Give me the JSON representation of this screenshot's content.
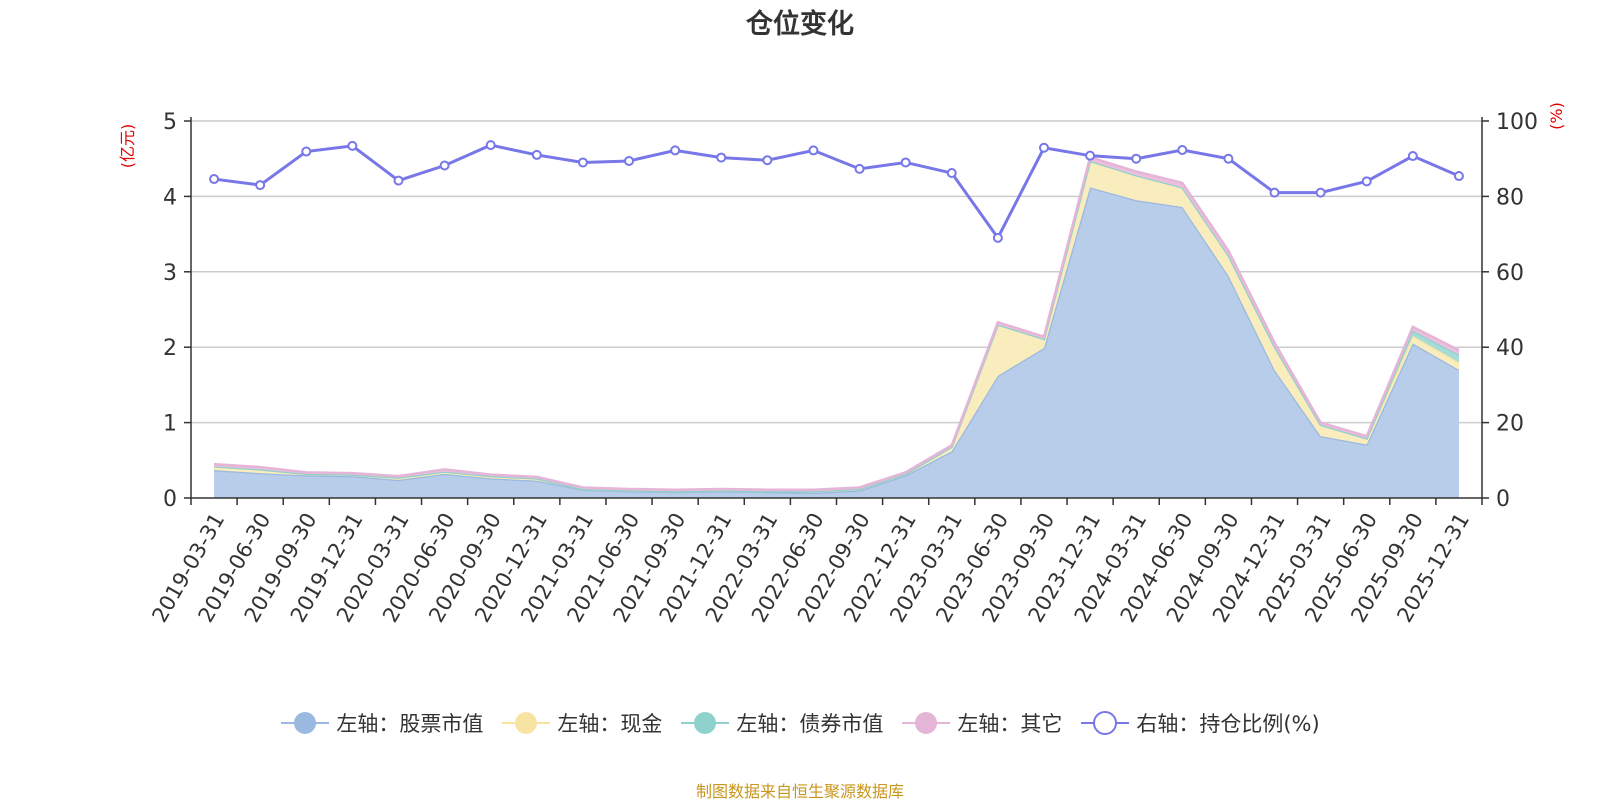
{
  "chart_data": {
    "type": "area",
    "title": "仓位变化",
    "y_left_label": "(亿元)",
    "y_right_label": "(%)",
    "y_left_ticks": [
      "0",
      "1",
      "2",
      "3",
      "4",
      "5"
    ],
    "y_right_ticks": [
      "0",
      "20",
      "40",
      "60",
      "80",
      "100"
    ],
    "ylim_left": [
      0,
      5
    ],
    "ylim_right": [
      0,
      100
    ],
    "grid": true,
    "legend_position": "bottom",
    "categories": [
      "2019-03-31",
      "2019-06-30",
      "2019-09-30",
      "2019-12-31",
      "2020-03-31",
      "2020-06-30",
      "2020-09-30",
      "2020-12-31",
      "2021-03-31",
      "2021-06-30",
      "2021-09-30",
      "2021-12-31",
      "2022-03-31",
      "2022-06-30",
      "2022-09-30",
      "2022-12-31",
      "2023-03-31",
      "2023-06-30",
      "2023-09-30",
      "2023-12-31",
      "2024-03-31",
      "2024-06-30",
      "2024-09-30",
      "2024-12-31",
      "2025-03-31",
      "2025-06-30",
      "2025-09-30",
      "2025-12-31"
    ],
    "series": [
      {
        "name": "左轴：股票市值",
        "axis": "left",
        "type": "area",
        "color": "#b7cdea",
        "line_color": "#9ab8e0",
        "values": [
          0.37,
          0.33,
          0.3,
          0.29,
          0.24,
          0.32,
          0.26,
          0.23,
          0.11,
          0.09,
          0.08,
          0.09,
          0.08,
          0.07,
          0.1,
          0.3,
          0.62,
          1.62,
          1.99,
          4.12,
          3.95,
          3.86,
          2.95,
          1.7,
          0.82,
          0.71,
          2.05,
          1.7
        ]
      },
      {
        "name": "左轴：现金",
        "axis": "left",
        "type": "area",
        "color": "#faedbd",
        "line_color": "#f7e4a3",
        "values": [
          0.05,
          0.05,
          0.02,
          0.02,
          0.03,
          0.03,
          0.03,
          0.03,
          0.01,
          0.01,
          0.01,
          0.01,
          0.01,
          0.02,
          0.02,
          0.02,
          0.06,
          0.68,
          0.12,
          0.35,
          0.33,
          0.26,
          0.27,
          0.31,
          0.15,
          0.08,
          0.1,
          0.1
        ]
      },
      {
        "name": "左轴：债券市值",
        "axis": "left",
        "type": "area",
        "color": "#a6dcd8",
        "line_color": "#8fd1cc",
        "values": [
          0,
          0,
          0,
          0,
          0,
          0,
          0,
          0,
          0,
          0,
          0,
          0,
          0,
          0,
          0,
          0,
          0,
          0,
          0,
          0,
          0,
          0,
          0,
          0,
          0,
          0,
          0.07,
          0.1
        ]
      },
      {
        "name": "左轴：其它",
        "axis": "left",
        "type": "area",
        "color": "#ecc0dc",
        "line_color": "#e5b5d8",
        "values": [
          0.03,
          0.03,
          0.02,
          0.02,
          0.02,
          0.03,
          0.02,
          0.02,
          0.02,
          0.02,
          0.02,
          0.02,
          0.02,
          0.02,
          0.02,
          0.02,
          0.02,
          0.03,
          0.03,
          0.05,
          0.05,
          0.06,
          0.06,
          0.05,
          0.03,
          0.03,
          0.05,
          0.06
        ]
      },
      {
        "name": "右轴：持仓比例(%)",
        "axis": "right",
        "type": "line",
        "color": "#7777e8",
        "values": [
          84.6,
          83.0,
          91.9,
          93.4,
          84.2,
          88.2,
          93.6,
          91.0,
          89.0,
          89.4,
          92.2,
          90.3,
          89.6,
          92.2,
          87.3,
          89.0,
          86.2,
          69.0,
          92.9,
          90.8,
          90.0,
          92.3,
          90.0,
          81.0,
          81.0,
          84.0,
          90.7,
          85.4
        ]
      }
    ]
  },
  "source_note": "制图数据来自恒生聚源数据库"
}
